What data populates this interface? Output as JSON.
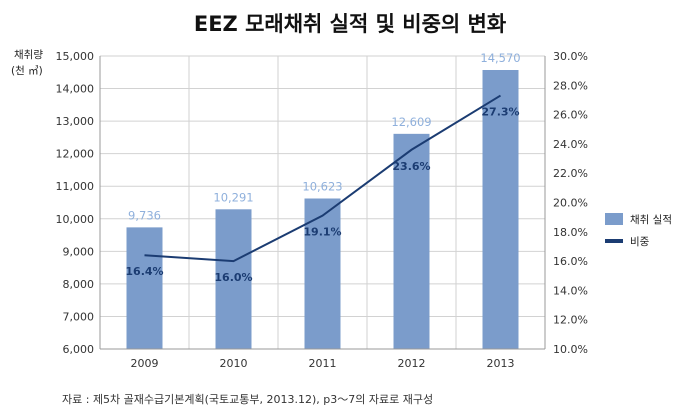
{
  "chart_data": {
    "type": "bar",
    "title": "EEZ 모래채취 실적 및 비중의 변화",
    "ylabel_line1": "채취량",
    "ylabel_line2": "(천 ㎥)",
    "categories": [
      "2009",
      "2010",
      "2011",
      "2012",
      "2013"
    ],
    "series": [
      {
        "name": "채취 실적",
        "type": "bar",
        "axis": "left",
        "values": [
          9736,
          10291,
          10623,
          12609,
          14570
        ],
        "labels": [
          "9,736",
          "10,291",
          "10,623",
          "12,609",
          "14,570"
        ],
        "color": "#7b9ccb"
      },
      {
        "name": "비중",
        "type": "line",
        "axis": "right",
        "values": [
          16.4,
          16.0,
          19.1,
          23.6,
          27.3
        ],
        "labels": [
          "16.4%",
          "16.0%",
          "19.1%",
          "23.6%",
          "27.3%"
        ],
        "color": "#1b3c72"
      }
    ],
    "ylim_left": [
      6000,
      15000
    ],
    "yticks_left": [
      "6,000",
      "7,000",
      "8,000",
      "9,000",
      "10,000",
      "11,000",
      "12,000",
      "13,000",
      "14,000",
      "15,000"
    ],
    "ylim_right": [
      10,
      30
    ],
    "yticks_right": [
      "10.0%",
      "12.0%",
      "14.0%",
      "16.0%",
      "18.0%",
      "20.0%",
      "22.0%",
      "24.0%",
      "26.0%",
      "28.0%",
      "30.0%"
    ],
    "grid": true,
    "legend_position": "right"
  },
  "source_note": "자료 : 제5차 골재수급기본계획(국토교통부, 2013.12), p3～7의 자료로 재구성"
}
